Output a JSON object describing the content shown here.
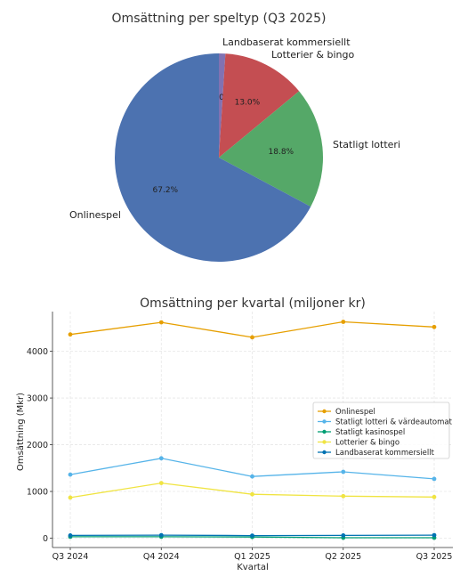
{
  "chart_data": [
    {
      "type": "pie",
      "title": "Omsättning per speltyp (Q3 2025)",
      "slices": [
        {
          "label": "Onlinespel",
          "value": 67.2,
          "pct_label": "67.2%",
          "color": "#4c72b0"
        },
        {
          "label": "Statligt lotteri",
          "value": 18.8,
          "pct_label": "18.8%",
          "color": "#55a868"
        },
        {
          "label": "Lotterier & bingo",
          "value": 13.0,
          "pct_label": "13.0%",
          "color": "#c44e52"
        },
        {
          "label": "Landbaserat kommersiellt",
          "value": 1.0,
          "pct_label": "1.0%",
          "color": "#8172b2"
        }
      ]
    },
    {
      "type": "line",
      "title": "Omsättning per kvartal (miljoner kr)",
      "xlabel": "Kvartal",
      "ylabel": "Omsättning (Mkr)",
      "categories": [
        "Q3 2024",
        "Q4 2024",
        "Q1 2025",
        "Q2 2025",
        "Q3 2025"
      ],
      "ylim": [
        -200,
        4850
      ],
      "yticks": [
        0,
        1000,
        2000,
        3000,
        4000
      ],
      "grid": true,
      "legend_position": "center-right",
      "series": [
        {
          "name": "Onlinespel",
          "color": "#e69f00",
          "values": [
            4360,
            4620,
            4300,
            4630,
            4520
          ]
        },
        {
          "name": "Statligt lotteri & värdeautomat",
          "color": "#56b4e9",
          "values": [
            1360,
            1710,
            1320,
            1420,
            1270
          ]
        },
        {
          "name": "Statligt kasinospel",
          "color": "#009e73",
          "values": [
            30,
            30,
            25,
            10,
            10
          ]
        },
        {
          "name": "Lotterier & bingo",
          "color": "#f0e442",
          "values": [
            870,
            1180,
            940,
            900,
            880
          ]
        },
        {
          "name": "Landbaserat kommersiellt",
          "color": "#0072b2",
          "values": [
            60,
            65,
            55,
            60,
            65
          ]
        }
      ]
    }
  ]
}
